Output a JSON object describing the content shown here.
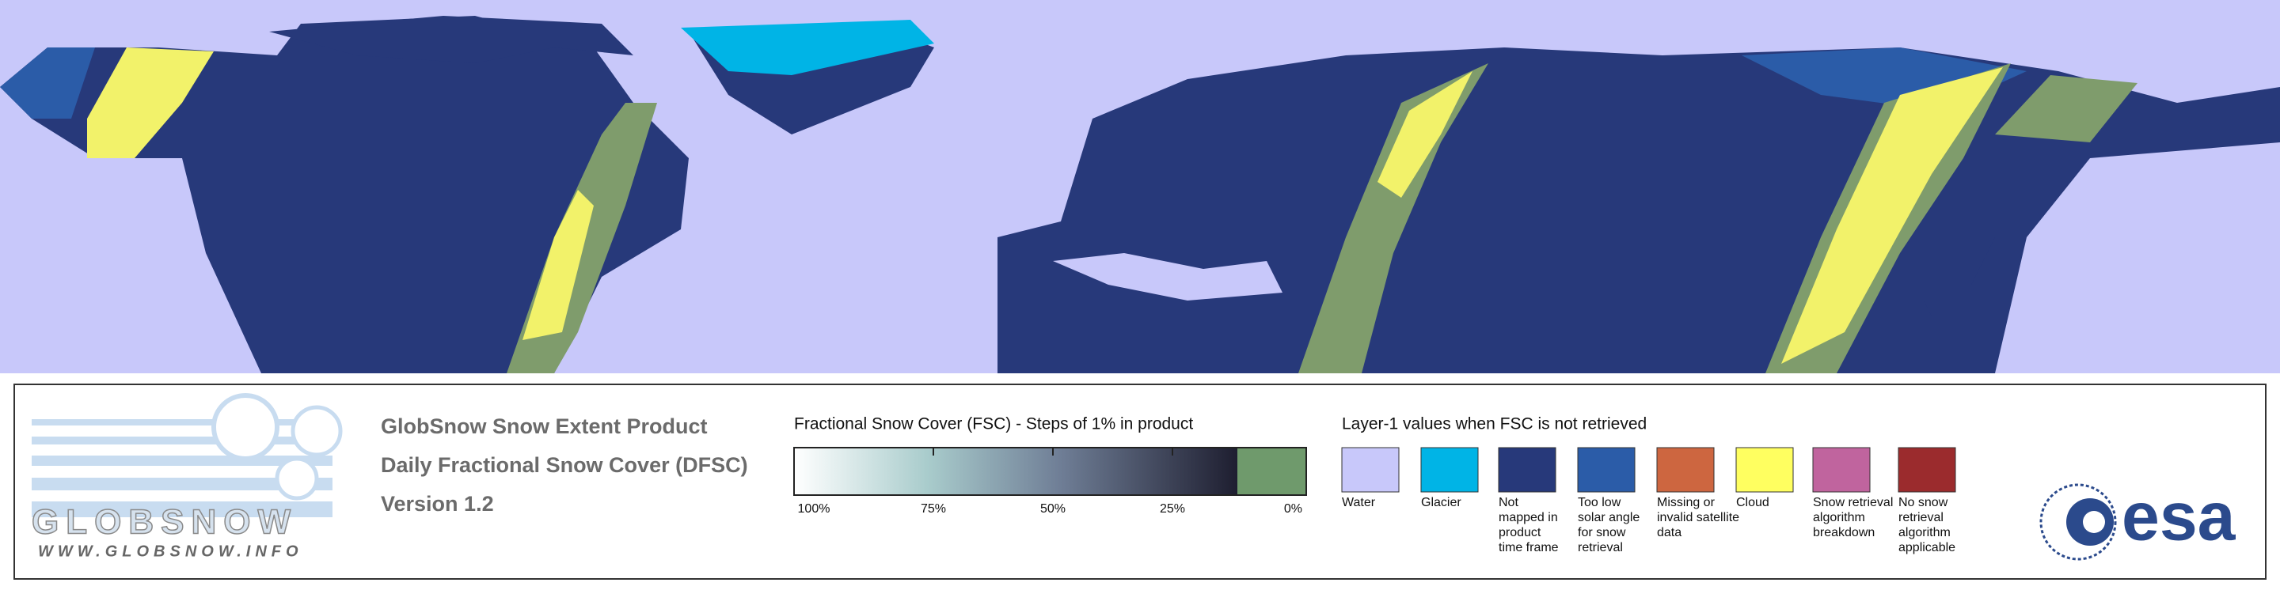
{
  "logo": {
    "name": "GLOBSNOW",
    "url": "WWW.GLOBSNOW.INFO"
  },
  "product": {
    "lines": [
      "GlobSnow Snow Extent Product",
      "Daily Fractional Snow Cover (DFSC)",
      "Version 1.2"
    ]
  },
  "fsc_legend": {
    "title": "Fractional Snow Cover (FSC) - Steps of 1% in product",
    "labels": [
      "100%",
      "75%",
      "50%",
      "25%",
      "0%"
    ]
  },
  "layer1_legend": {
    "title": "Layer-1 values when FSC is not retrieved",
    "items": [
      {
        "label": [
          "Water"
        ],
        "color": "#c8c8fa"
      },
      {
        "label": [
          "Glacier"
        ],
        "color": "#00b4e6"
      },
      {
        "label": [
          "Not",
          "mapped in",
          "product",
          "time frame"
        ],
        "color": "#27397a"
      },
      {
        "label": [
          "Too low",
          "solar angle",
          "for snow",
          "retrieval"
        ],
        "color": "#2b5ca8"
      },
      {
        "label": [
          "Missing or",
          "invalid satellite",
          "data"
        ],
        "color": "#cd6640"
      },
      {
        "label": [
          "Cloud"
        ],
        "color": "#ffff60"
      },
      {
        "label": [
          "Snow retrieval",
          "algorithm",
          "breakdown"
        ],
        "color": "#c0649e"
      },
      {
        "label": [
          "No snow",
          "retrieval",
          "algorithm",
          "applicable"
        ],
        "color": "#9b2b2d"
      }
    ]
  },
  "esa": "esa"
}
